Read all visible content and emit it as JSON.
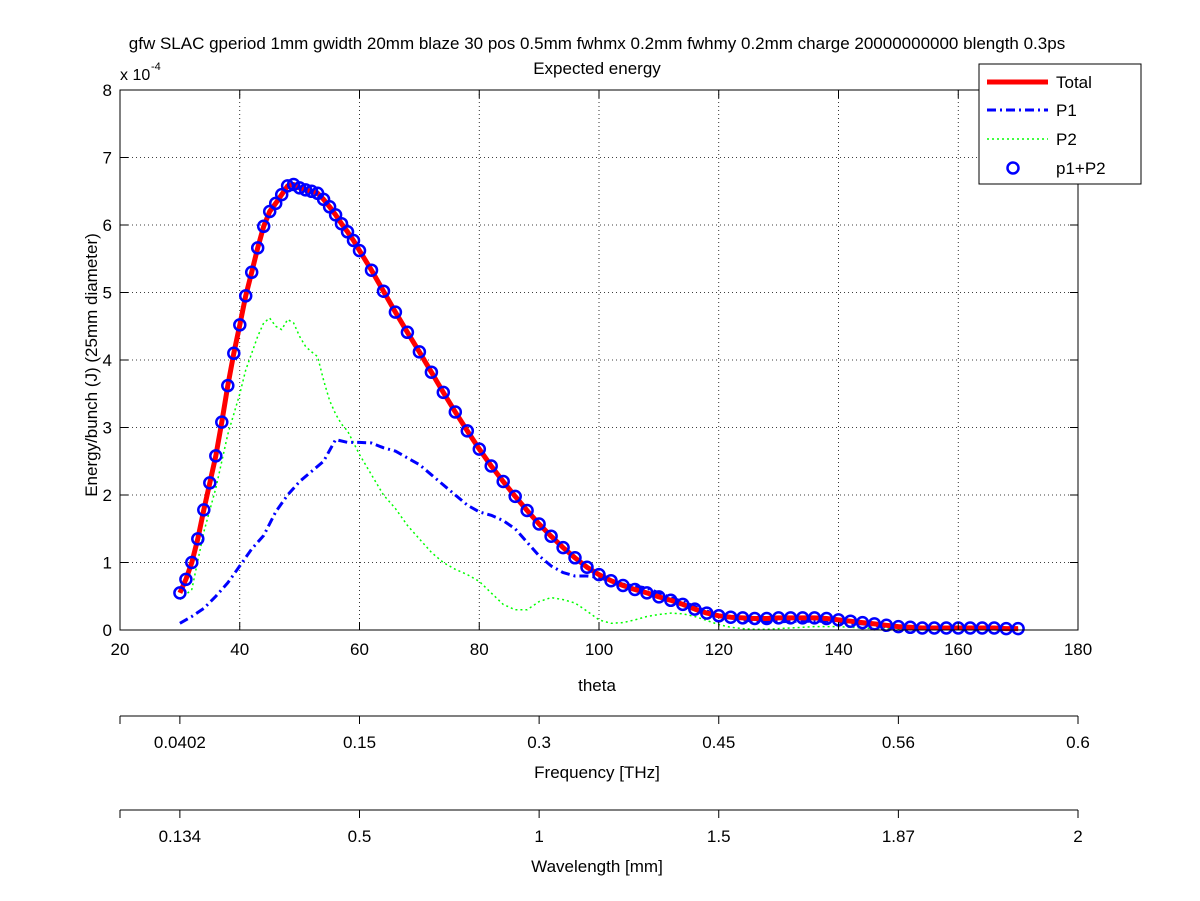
{
  "chart_data": {
    "type": "line",
    "title": "gfw SLAC gperiod 1mm gwidth 20mm blaze 30 pos 0.5mm fwhmx 0.2mm fwhmy 0.2mm charge 20000000000 blength 0.3ps",
    "subtitle": "Expected energy",
    "xlabel": "theta",
    "ylabel": "Energy/bunch (J) (25mm diameter)",
    "xlim": [
      20,
      180
    ],
    "ylim": [
      0,
      8
    ],
    "y_scale_factor": "x 10",
    "y_scale_exponent": "-4",
    "xticks": [
      "20",
      "40",
      "60",
      "80",
      "100",
      "120",
      "140",
      "160",
      "180"
    ],
    "yticks": [
      "0",
      "1",
      "2",
      "3",
      "4",
      "5",
      "6",
      "7",
      "8"
    ],
    "grid": true,
    "legend_position": "top-right",
    "legend": [
      {
        "label": "Total",
        "color": "#ff0000",
        "style": "solid-thick"
      },
      {
        "label": "P1",
        "color": "#0000ff",
        "style": "dashdot"
      },
      {
        "label": "P2",
        "color": "#00ff00",
        "style": "dotted"
      },
      {
        "label": "p1+P2",
        "color": "#0000ff",
        "style": "circle-marker"
      }
    ],
    "series": [
      {
        "name": "Total",
        "x": [
          30,
          31,
          32,
          33,
          34,
          35,
          36,
          37,
          38,
          39,
          40,
          41,
          42,
          43,
          44,
          45,
          46,
          47,
          48,
          49,
          50,
          51,
          52,
          53,
          54,
          55,
          56,
          57,
          58,
          59,
          60,
          62,
          64,
          66,
          68,
          70,
          72,
          74,
          76,
          78,
          80,
          82,
          84,
          86,
          88,
          90,
          92,
          94,
          96,
          98,
          100,
          102,
          104,
          106,
          108,
          110,
          112,
          114,
          116,
          118,
          120,
          122,
          124,
          126,
          128,
          130,
          132,
          134,
          136,
          138,
          140,
          142,
          144,
          146,
          148,
          150,
          152,
          154,
          156,
          158,
          160,
          162,
          164,
          166,
          168,
          170
        ],
        "y": [
          0.55,
          0.75,
          1.0,
          1.35,
          1.78,
          2.18,
          2.58,
          3.08,
          3.62,
          4.1,
          4.52,
          4.95,
          5.3,
          5.66,
          5.98,
          6.2,
          6.32,
          6.45,
          6.58,
          6.6,
          6.55,
          6.52,
          6.5,
          6.47,
          6.38,
          6.27,
          6.15,
          6.02,
          5.9,
          5.77,
          5.62,
          5.33,
          5.02,
          4.71,
          4.41,
          4.12,
          3.82,
          3.52,
          3.23,
          2.95,
          2.68,
          2.43,
          2.2,
          1.98,
          1.77,
          1.57,
          1.39,
          1.22,
          1.07,
          0.93,
          0.82,
          0.73,
          0.66,
          0.6,
          0.55,
          0.49,
          0.44,
          0.38,
          0.31,
          0.25,
          0.21,
          0.19,
          0.18,
          0.17,
          0.17,
          0.18,
          0.18,
          0.18,
          0.18,
          0.17,
          0.15,
          0.13,
          0.11,
          0.09,
          0.07,
          0.05,
          0.04,
          0.03,
          0.03,
          0.03,
          0.03,
          0.03,
          0.03,
          0.03,
          0.02,
          0.02
        ]
      },
      {
        "name": "P1",
        "x": [
          30,
          32,
          34,
          36,
          38,
          40,
          42,
          44,
          46,
          48,
          50,
          52,
          54,
          56,
          58,
          60,
          62,
          64,
          66,
          68,
          70,
          72,
          74,
          76,
          78,
          80,
          82,
          84,
          86,
          88,
          90,
          92,
          94,
          96,
          98,
          100,
          102,
          104,
          106,
          108,
          110,
          112,
          114,
          116,
          118,
          120,
          122,
          124,
          126,
          128,
          130,
          132,
          134,
          136,
          138,
          140,
          142,
          144,
          146,
          148,
          150,
          152,
          154,
          156,
          158,
          160,
          162,
          164,
          166,
          168,
          170
        ],
        "y": [
          0.1,
          0.2,
          0.32,
          0.5,
          0.7,
          0.95,
          1.2,
          1.4,
          1.75,
          2.0,
          2.2,
          2.35,
          2.5,
          2.82,
          2.78,
          2.78,
          2.77,
          2.7,
          2.65,
          2.55,
          2.45,
          2.3,
          2.15,
          2.0,
          1.85,
          1.75,
          1.7,
          1.62,
          1.5,
          1.3,
          1.1,
          0.95,
          0.85,
          0.8,
          0.8,
          0.78,
          0.72,
          0.68,
          0.65,
          0.62,
          0.55,
          0.48,
          0.42,
          0.35,
          0.28,
          0.22,
          0.18,
          0.15,
          0.13,
          0.12,
          0.12,
          0.13,
          0.13,
          0.13,
          0.13,
          0.12,
          0.1,
          0.09,
          0.07,
          0.05,
          0.04,
          0.03,
          0.02,
          0.02,
          0.02,
          0.02,
          0.02,
          0.02,
          0.02,
          0.02,
          0.02
        ]
      },
      {
        "name": "P2",
        "x": [
          30,
          32,
          34,
          36,
          38,
          40,
          41,
          42,
          43,
          44,
          45,
          46,
          47,
          48,
          49,
          50,
          51,
          52,
          53,
          54,
          55,
          56,
          57,
          58,
          60,
          62,
          64,
          66,
          68,
          70,
          72,
          74,
          76,
          78,
          80,
          82,
          84,
          86,
          88,
          90,
          92,
          94,
          96,
          98,
          100,
          102,
          104,
          106,
          108,
          110,
          112,
          114,
          116,
          118,
          120,
          122,
          124,
          126,
          128,
          130,
          132,
          134,
          136,
          138,
          140,
          142,
          144,
          146,
          148,
          150,
          152,
          154,
          156,
          158,
          160,
          162,
          164,
          166,
          168,
          170
        ],
        "y": [
          0.45,
          0.6,
          1.45,
          2.1,
          2.9,
          3.5,
          3.85,
          4.1,
          4.35,
          4.55,
          4.62,
          4.5,
          4.45,
          4.6,
          4.55,
          4.35,
          4.2,
          4.12,
          4.05,
          3.7,
          3.4,
          3.2,
          3.05,
          2.95,
          2.6,
          2.3,
          2.0,
          1.8,
          1.55,
          1.35,
          1.15,
          1.0,
          0.9,
          0.82,
          0.72,
          0.55,
          0.38,
          0.3,
          0.3,
          0.42,
          0.48,
          0.45,
          0.4,
          0.28,
          0.15,
          0.1,
          0.11,
          0.15,
          0.2,
          0.23,
          0.25,
          0.24,
          0.2,
          0.14,
          0.08,
          0.04,
          0.02,
          0.01,
          0.01,
          0.02,
          0.03,
          0.04,
          0.05,
          0.05,
          0.05,
          0.04,
          0.03,
          0.02,
          0.02,
          0.01,
          0.01,
          0.01,
          0.01,
          0.01,
          0.01,
          0.01,
          0.01,
          0.01,
          0.01,
          0.01
        ]
      },
      {
        "name": "p1+P2",
        "x": [
          30,
          31,
          32,
          33,
          34,
          35,
          36,
          37,
          38,
          39,
          40,
          41,
          42,
          43,
          44,
          45,
          46,
          47,
          48,
          49,
          50,
          51,
          52,
          53,
          54,
          55,
          56,
          57,
          58,
          59,
          60,
          62,
          64,
          66,
          68,
          70,
          72,
          74,
          76,
          78,
          80,
          82,
          84,
          86,
          88,
          90,
          92,
          94,
          96,
          98,
          100,
          102,
          104,
          106,
          108,
          110,
          112,
          114,
          116,
          118,
          120,
          122,
          124,
          126,
          128,
          130,
          132,
          134,
          136,
          138,
          140,
          142,
          144,
          146,
          148,
          150,
          152,
          154,
          156,
          158,
          160,
          162,
          164,
          166,
          168,
          170
        ],
        "y": [
          0.55,
          0.75,
          1.0,
          1.35,
          1.78,
          2.18,
          2.58,
          3.08,
          3.62,
          4.1,
          4.52,
          4.95,
          5.3,
          5.66,
          5.98,
          6.2,
          6.32,
          6.45,
          6.58,
          6.6,
          6.55,
          6.52,
          6.5,
          6.47,
          6.38,
          6.27,
          6.15,
          6.02,
          5.9,
          5.77,
          5.62,
          5.33,
          5.02,
          4.71,
          4.41,
          4.12,
          3.82,
          3.52,
          3.23,
          2.95,
          2.68,
          2.43,
          2.2,
          1.98,
          1.77,
          1.57,
          1.39,
          1.22,
          1.07,
          0.93,
          0.82,
          0.73,
          0.66,
          0.6,
          0.55,
          0.49,
          0.44,
          0.38,
          0.31,
          0.25,
          0.21,
          0.19,
          0.18,
          0.17,
          0.17,
          0.18,
          0.18,
          0.18,
          0.18,
          0.17,
          0.15,
          0.13,
          0.11,
          0.09,
          0.07,
          0.05,
          0.04,
          0.03,
          0.03,
          0.03,
          0.03,
          0.03,
          0.03,
          0.03,
          0.02,
          0.02
        ]
      }
    ],
    "secondary_axes": [
      {
        "label": "Frequency [THz]",
        "ticks": [
          {
            "label": "0.0402",
            "theta": 30
          },
          {
            "label": "0.15",
            "theta": 60
          },
          {
            "label": "0.3",
            "theta": 90
          },
          {
            "label": "0.45",
            "theta": 120
          },
          {
            "label": "0.56",
            "theta": 150
          },
          {
            "label": "0.6",
            "theta": 180
          }
        ]
      },
      {
        "label": "Wavelength [mm]",
        "ticks": [
          {
            "label": "0.134",
            "theta": 30
          },
          {
            "label": "0.5",
            "theta": 60
          },
          {
            "label": "1",
            "theta": 90
          },
          {
            "label": "1.5",
            "theta": 120
          },
          {
            "label": "1.87",
            "theta": 150
          },
          {
            "label": "2",
            "theta": 180
          }
        ]
      }
    ]
  }
}
